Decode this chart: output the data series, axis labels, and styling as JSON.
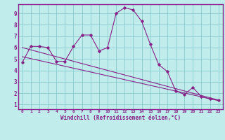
{
  "title": "",
  "xlabel": "Windchill (Refroidissement éolien,°C)",
  "bg_color": "#c0ecec",
  "grid_color": "#90d0d0",
  "line_color": "#882288",
  "xlim": [
    -0.5,
    23.5
  ],
  "ylim": [
    0.6,
    9.8
  ],
  "xticks": [
    0,
    1,
    2,
    3,
    4,
    5,
    6,
    7,
    8,
    9,
    10,
    11,
    12,
    13,
    14,
    15,
    16,
    17,
    18,
    19,
    20,
    21,
    22,
    23
  ],
  "yticks": [
    1,
    2,
    3,
    4,
    5,
    6,
    7,
    8,
    9
  ],
  "wavy_x": [
    0,
    1,
    2,
    3,
    4,
    5,
    6,
    7,
    8,
    9,
    10,
    11,
    12,
    13,
    14,
    15,
    16,
    17,
    18,
    19,
    20,
    21,
    22,
    23
  ],
  "wavy_y": [
    4.7,
    6.1,
    6.1,
    6.0,
    4.8,
    4.8,
    6.1,
    7.1,
    7.1,
    5.7,
    6.0,
    9.0,
    9.5,
    9.3,
    8.3,
    6.3,
    4.5,
    3.9,
    2.2,
    1.9,
    2.5,
    1.7,
    1.5,
    1.4
  ],
  "line1_x": [
    0,
    23
  ],
  "line1_y": [
    6.0,
    1.4
  ],
  "line2_x": [
    0,
    23
  ],
  "line2_y": [
    5.2,
    1.35
  ]
}
